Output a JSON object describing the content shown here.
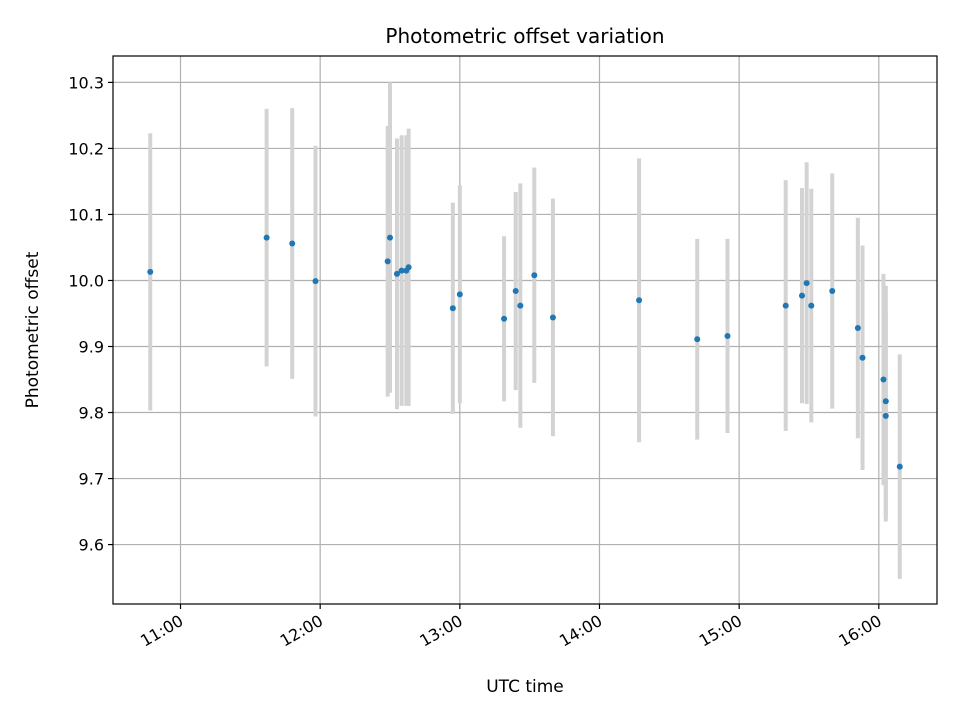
{
  "chart_data": {
    "type": "scatter",
    "title": "Photometric offset variation",
    "xlabel": "UTC time",
    "ylabel": "Photometric offset",
    "xlim": [
      "10:31",
      "16:25"
    ],
    "ylim": [
      9.51,
      10.34
    ],
    "x_ticks": [
      "11:00",
      "12:00",
      "13:00",
      "14:00",
      "15:00",
      "16:00"
    ],
    "y_ticks": [
      "9.6",
      "9.7",
      "9.8",
      "9.9",
      "10.0",
      "10.1",
      "10.2",
      "10.3"
    ],
    "grid": true,
    "point_color": "#1f77b4",
    "errorbar_color": "#d3d3d3",
    "series": [
      {
        "x": [
          "10:47",
          "11:37",
          "11:48",
          "11:58",
          "12:29",
          "12:30",
          "12:33",
          "12:35",
          "12:37",
          "12:38",
          "12:57",
          "13:00",
          "13:19",
          "13:24",
          "13:26",
          "13:32",
          "13:40",
          "14:17",
          "14:42",
          "14:55",
          "15:20",
          "15:27",
          "15:29",
          "15:31",
          "15:40",
          "15:51",
          "15:53",
          "16:02",
          "16:03",
          "16:03",
          "16:09"
        ],
        "y": [
          10.013,
          10.065,
          10.056,
          9.999,
          10.029,
          10.065,
          10.01,
          10.015,
          10.015,
          10.02,
          9.958,
          9.979,
          9.942,
          9.984,
          9.962,
          10.008,
          9.944,
          9.97,
          9.911,
          9.916,
          9.962,
          9.977,
          9.996,
          9.962,
          9.984,
          9.928,
          9.883,
          9.85,
          9.817,
          9.795,
          9.718
        ],
        "error": [
          0.21,
          0.195,
          0.205,
          0.205,
          0.205,
          0.235,
          0.205,
          0.205,
          0.205,
          0.21,
          0.16,
          0.165,
          0.125,
          0.15,
          0.185,
          0.163,
          0.18,
          0.215,
          0.152,
          0.147,
          0.19,
          0.163,
          0.183,
          0.177,
          0.178,
          0.167,
          0.17,
          0.16,
          0.175,
          0.16,
          0.17
        ]
      }
    ]
  }
}
